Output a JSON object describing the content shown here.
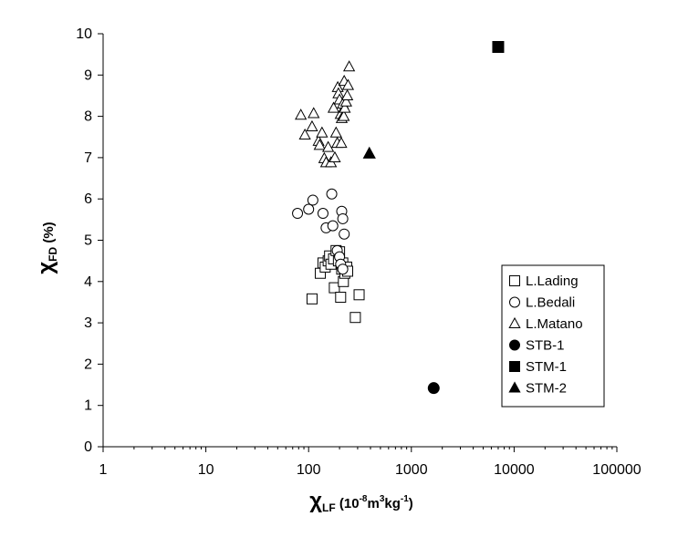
{
  "chart_data": {
    "type": "scatter",
    "x_scale": "log",
    "xlim": [
      1,
      100000
    ],
    "ylim": [
      0,
      10
    ],
    "x_ticks": [
      "1",
      "10",
      "100",
      "1000",
      "10000",
      "100000"
    ],
    "y_ticks": [
      "0",
      "1",
      "2",
      "3",
      "4",
      "5",
      "6",
      "7",
      "8",
      "9",
      "10"
    ],
    "xlabel": {
      "symbol": "χ",
      "sub": "LF",
      "units_open": " (10",
      "exp1": "-8",
      "units_mid": "m",
      "exp2": "3",
      "units_kg": "kg",
      "exp3": "-1",
      "units_close": ")"
    },
    "ylabel": {
      "symbol": "χ",
      "sub": "FD",
      "units": " (%)"
    },
    "grid": false,
    "legend_position": "bottom-right",
    "series": [
      {
        "name": "L.Lading",
        "marker": "square",
        "filled": false,
        "points": [
          [
            108,
            3.58
          ],
          [
            130,
            4.2
          ],
          [
            138,
            4.45
          ],
          [
            145,
            4.35
          ],
          [
            155,
            4.5
          ],
          [
            160,
            4.62
          ],
          [
            165,
            4.42
          ],
          [
            175,
            4.55
          ],
          [
            178,
            3.85
          ],
          [
            185,
            4.75
          ],
          [
            195,
            4.5
          ],
          [
            200,
            4.72
          ],
          [
            205,
            3.62
          ],
          [
            210,
            4.3
          ],
          [
            215,
            4.45
          ],
          [
            218,
            4.0
          ],
          [
            225,
            4.2
          ],
          [
            235,
            4.35
          ],
          [
            240,
            4.25
          ],
          [
            285,
            3.13
          ],
          [
            310,
            3.68
          ]
        ]
      },
      {
        "name": "L.Bedali",
        "marker": "circle",
        "filled": false,
        "points": [
          [
            78,
            5.65
          ],
          [
            100,
            5.75
          ],
          [
            110,
            5.97
          ],
          [
            138,
            5.65
          ],
          [
            148,
            5.3
          ],
          [
            168,
            6.12
          ],
          [
            172,
            5.35
          ],
          [
            190,
            4.75
          ],
          [
            200,
            4.6
          ],
          [
            205,
            4.42
          ],
          [
            210,
            5.7
          ],
          [
            215,
            5.52
          ],
          [
            222,
            5.15
          ],
          [
            215,
            4.3
          ]
        ]
      },
      {
        "name": "L.Matano",
        "marker": "triangle",
        "filled": false,
        "points": [
          [
            84,
            8.03
          ],
          [
            92,
            7.55
          ],
          [
            108,
            7.75
          ],
          [
            112,
            8.07
          ],
          [
            125,
            7.4
          ],
          [
            128,
            7.3
          ],
          [
            135,
            7.6
          ],
          [
            142,
            6.98
          ],
          [
            148,
            6.88
          ],
          [
            155,
            7.25
          ],
          [
            165,
            6.88
          ],
          [
            175,
            8.2
          ],
          [
            180,
            7.0
          ],
          [
            185,
            7.6
          ],
          [
            190,
            7.35
          ],
          [
            192,
            8.7
          ],
          [
            195,
            8.55
          ],
          [
            200,
            8.4
          ],
          [
            205,
            8.05
          ],
          [
            208,
            7.35
          ],
          [
            210,
            7.95
          ],
          [
            215,
            8.3
          ],
          [
            220,
            8.0
          ],
          [
            222,
            8.85
          ],
          [
            225,
            8.2
          ],
          [
            232,
            8.35
          ],
          [
            238,
            8.5
          ],
          [
            242,
            8.75
          ],
          [
            248,
            9.2
          ]
        ]
      },
      {
        "name": "STB-1",
        "marker": "circle",
        "filled": true,
        "points": [
          [
            1650,
            1.42
          ]
        ]
      },
      {
        "name": "STM-1",
        "marker": "square",
        "filled": true,
        "points": [
          [
            7000,
            9.68
          ]
        ]
      },
      {
        "name": "STM-2",
        "marker": "triangle",
        "filled": true,
        "points": [
          [
            390,
            7.1
          ]
        ]
      }
    ]
  }
}
